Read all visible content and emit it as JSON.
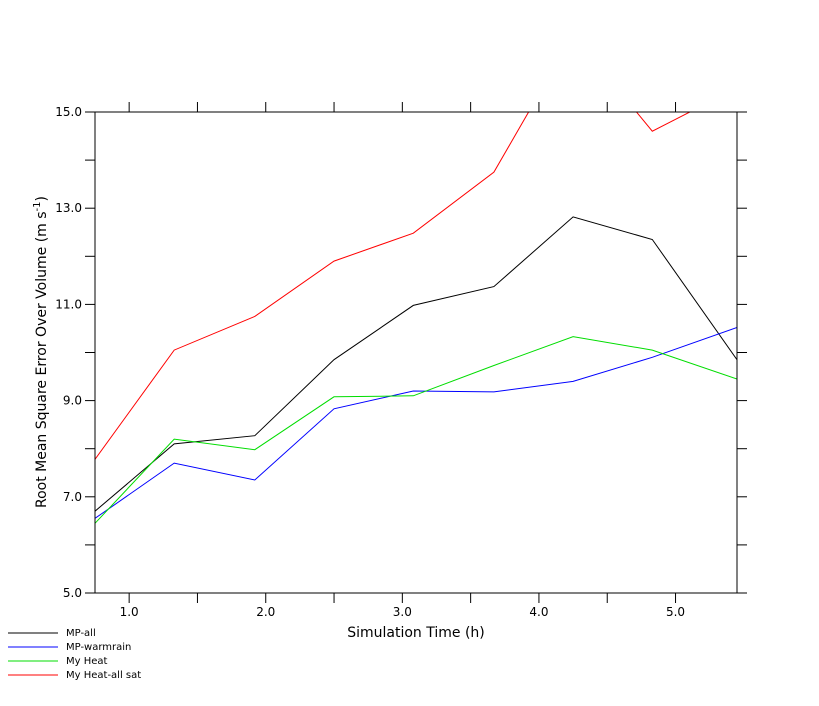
{
  "chart_data": {
    "type": "line",
    "title": "",
    "xlabel": "Simulation Time (h)",
    "ylabel_main": "Root Mean Square Error Over Volume (m s",
    "ylabel_sup": "-1",
    "ylabel_close": ")",
    "xlim": [
      0.75,
      5.45
    ],
    "ylim": [
      5.0,
      15.0
    ],
    "x_tick_values": [
      1.0,
      2.0,
      3.0,
      4.0,
      5.0
    ],
    "x_tick_labels": [
      "1.0",
      "2.0",
      "3.0",
      "4.0",
      "5.0"
    ],
    "x_minor_values": [
      1.5,
      2.5,
      3.5,
      4.5
    ],
    "y_tick_values": [
      5.0,
      7.0,
      9.0,
      11.0,
      13.0,
      15.0
    ],
    "y_tick_labels": [
      "5.0",
      "7.0",
      "9.0",
      "11.0",
      "13.0",
      "15.0"
    ],
    "y_minor_values": [
      6.0,
      8.0,
      10.0,
      12.0,
      14.0
    ],
    "grid": false,
    "legend_position": "bottom-left",
    "x": [
      0.75,
      1.33,
      1.92,
      2.5,
      3.08,
      3.67,
      4.25,
      4.83,
      5.45
    ],
    "series": [
      {
        "name": "MP-all",
        "color": "#000000",
        "values": [
          6.7,
          8.1,
          8.27,
          9.85,
          10.98,
          11.37,
          12.82,
          12.35,
          9.85
        ]
      },
      {
        "name": "MP-warmrain",
        "color": "#0000ff",
        "values": [
          6.55,
          7.7,
          7.35,
          8.83,
          9.2,
          9.18,
          9.4,
          9.9,
          10.52
        ]
      },
      {
        "name": "My Heat",
        "color": "#00dd00",
        "values": [
          6.45,
          8.2,
          7.98,
          9.08,
          9.1,
          9.73,
          10.33,
          10.05,
          9.45
        ]
      },
      {
        "name": "My Heat-all sat",
        "color": "#ff0000",
        "values": [
          7.78,
          10.05,
          10.75,
          11.9,
          12.48,
          13.75,
          16.6,
          14.6,
          15.5
        ]
      }
    ]
  }
}
